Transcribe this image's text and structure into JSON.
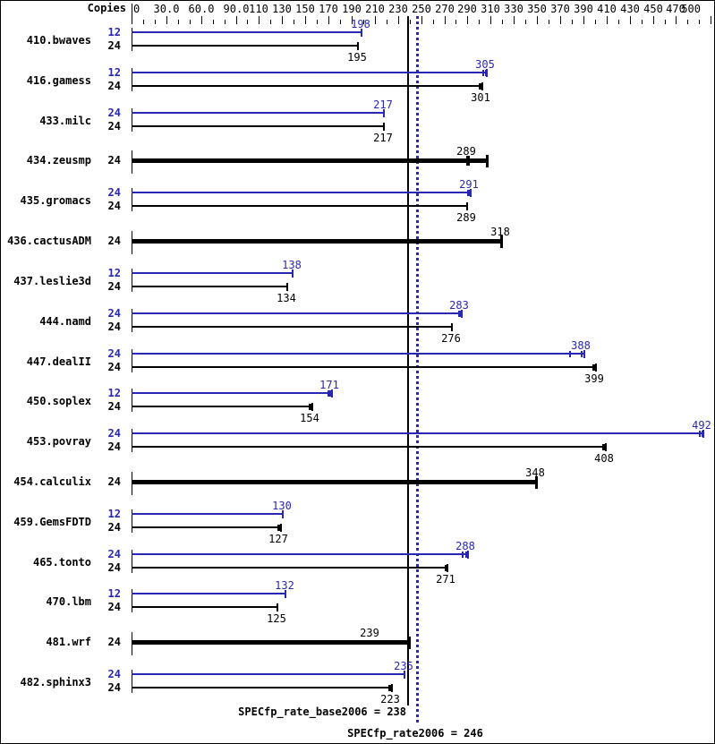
{
  "header": {
    "copies_label": "Copies"
  },
  "footer": {
    "base_label": "SPECfp_rate_base2006 = 238",
    "peak_label": "SPECfp_rate2006 = 246"
  },
  "colors": {
    "peak_blue": "#2828b4",
    "base_black": "#000000"
  },
  "chart_data": {
    "type": "bar",
    "orientation": "horizontal",
    "xlim": [
      0,
      500
    ],
    "x_minor_step": 10,
    "x_major_ticks": [
      {
        "v": 0,
        "label": "0"
      },
      {
        "v": 30,
        "label": "30.0"
      },
      {
        "v": 60,
        "label": "60.0"
      },
      {
        "v": 90,
        "label": "90.0"
      },
      {
        "v": 110,
        "label": "110"
      },
      {
        "v": 130,
        "label": "130"
      },
      {
        "v": 150,
        "label": "150"
      },
      {
        "v": 170,
        "label": "170"
      },
      {
        "v": 190,
        "label": "190"
      },
      {
        "v": 210,
        "label": "210"
      },
      {
        "v": 230,
        "label": "230"
      },
      {
        "v": 250,
        "label": "250"
      },
      {
        "v": 270,
        "label": "270"
      },
      {
        "v": 290,
        "label": "290"
      },
      {
        "v": 310,
        "label": "310"
      },
      {
        "v": 330,
        "label": "330"
      },
      {
        "v": 350,
        "label": "350"
      },
      {
        "v": 370,
        "label": "370"
      },
      {
        "v": 390,
        "label": "390"
      },
      {
        "v": 410,
        "label": "410"
      },
      {
        "v": 430,
        "label": "430"
      },
      {
        "v": 450,
        "label": "450"
      },
      {
        "v": 470,
        "label": "470"
      },
      {
        "v": 500,
        "label": "500"
      }
    ],
    "reference_lines": [
      {
        "name": "SPECfp_rate_base2006",
        "value": 238,
        "style": "solid",
        "color": "black"
      },
      {
        "name": "SPECfp_rate2006",
        "value": 246,
        "style": "dotted",
        "color": "blue"
      }
    ],
    "benchmarks": [
      {
        "name": "410.bwaves",
        "bars": [
          {
            "copies": "12",
            "series": "peak",
            "value": 198
          },
          {
            "copies": "24",
            "series": "base",
            "value": 195
          }
        ]
      },
      {
        "name": "416.gamess",
        "bars": [
          {
            "copies": "12",
            "series": "peak",
            "value": 305,
            "end": 306,
            "marks": [
              303,
              305
            ]
          },
          {
            "copies": "24",
            "series": "base",
            "value": 301,
            "end": 302,
            "marks": [
              300,
              301
            ]
          }
        ]
      },
      {
        "name": "433.milc",
        "bars": [
          {
            "copies": "24",
            "series": "peak",
            "value": 217
          },
          {
            "copies": "24",
            "series": "base",
            "value": 217
          }
        ]
      },
      {
        "name": "434.zeusmp",
        "bars": [
          {
            "copies": "24",
            "series": "base-peak",
            "thick": true,
            "value": 289,
            "end": 306,
            "marks": [
              289,
              290.5
            ]
          }
        ]
      },
      {
        "name": "435.gromacs",
        "bars": [
          {
            "copies": "24",
            "series": "peak",
            "value": 291,
            "end": 292,
            "marks": [
              290,
              291
            ]
          },
          {
            "copies": "24",
            "series": "base",
            "value": 289
          }
        ]
      },
      {
        "name": "436.cactusADM",
        "bars": [
          {
            "copies": "24",
            "series": "base-peak",
            "thick": true,
            "value": 318
          }
        ]
      },
      {
        "name": "437.leslie3d",
        "bars": [
          {
            "copies": "12",
            "series": "peak",
            "value": 138
          },
          {
            "copies": "24",
            "series": "base",
            "value": 134
          }
        ]
      },
      {
        "name": "444.namd",
        "bars": [
          {
            "copies": "24",
            "series": "peak",
            "value": 283,
            "end": 284,
            "marks": [
              282,
              283
            ]
          },
          {
            "copies": "24",
            "series": "base",
            "value": 276
          }
        ]
      },
      {
        "name": "447.dealII",
        "bars": [
          {
            "copies": "24",
            "series": "peak",
            "value": 388,
            "end": 390,
            "marks": [
              378,
              388
            ]
          },
          {
            "copies": "24",
            "series": "base",
            "value": 399,
            "end": 400,
            "marks": [
              398,
              399
            ]
          }
        ]
      },
      {
        "name": "450.soplex",
        "bars": [
          {
            "copies": "12",
            "series": "peak",
            "value": 171,
            "end": 172,
            "marks": [
              169,
              171
            ]
          },
          {
            "copies": "24",
            "series": "base",
            "value": 154,
            "end": 155,
            "marks": [
              153,
              154
            ]
          }
        ]
      },
      {
        "name": "453.povray",
        "bars": [
          {
            "copies": "24",
            "series": "peak",
            "value": 492,
            "end": 493,
            "marks": [
              490,
              492
            ]
          },
          {
            "copies": "24",
            "series": "base",
            "value": 408,
            "end": 409,
            "marks": [
              406,
              408
            ]
          }
        ]
      },
      {
        "name": "454.calculix",
        "bars": [
          {
            "copies": "24",
            "series": "base-peak",
            "thick": true,
            "value": 348
          }
        ]
      },
      {
        "name": "459.GemsFDTD",
        "bars": [
          {
            "copies": "12",
            "series": "peak",
            "value": 130
          },
          {
            "copies": "24",
            "series": "base",
            "value": 127,
            "end": 128,
            "marks": [
              126,
              127
            ]
          }
        ]
      },
      {
        "name": "465.tonto",
        "bars": [
          {
            "copies": "24",
            "series": "peak",
            "value": 288,
            "end": 290,
            "marks": [
              285,
              288
            ]
          },
          {
            "copies": "24",
            "series": "base",
            "value": 271,
            "end": 272,
            "marks": [
              270,
              271
            ]
          }
        ]
      },
      {
        "name": "470.lbm",
        "bars": [
          {
            "copies": "12",
            "series": "peak",
            "value": 132
          },
          {
            "copies": "24",
            "series": "base",
            "value": 125
          }
        ]
      },
      {
        "name": "481.wrf",
        "bars": [
          {
            "copies": "24",
            "series": "base-peak",
            "thick": true,
            "value": 239,
            "label_dx": -43
          }
        ]
      },
      {
        "name": "482.sphinx3",
        "bars": [
          {
            "copies": "24",
            "series": "peak",
            "value": 235
          },
          {
            "copies": "24",
            "series": "base",
            "value": 223,
            "end": 224,
            "marks": [
              222,
              223
            ]
          }
        ]
      }
    ]
  }
}
